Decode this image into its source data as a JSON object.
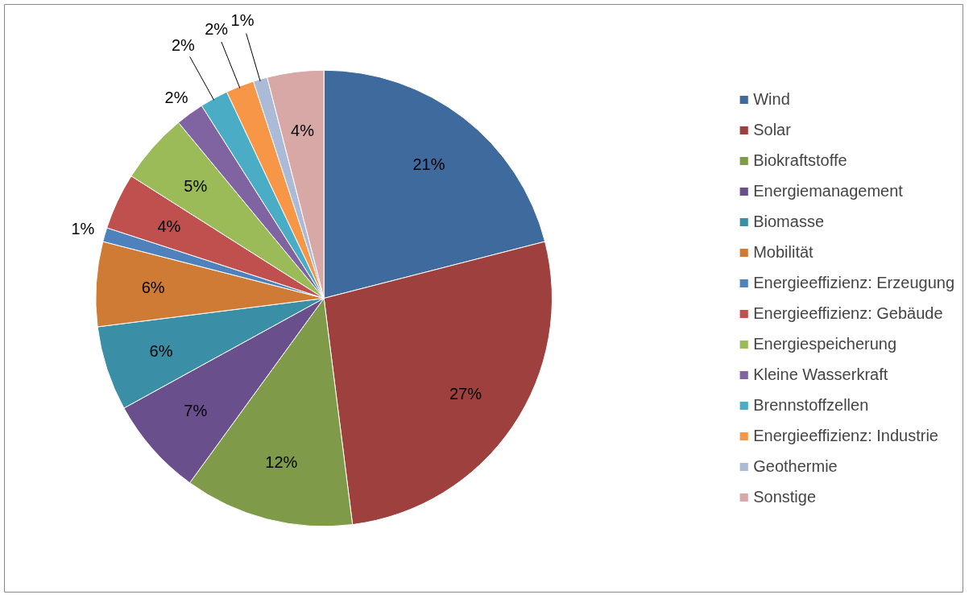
{
  "chart_data": {
    "type": "pie",
    "categories": [
      "Wind",
      "Solar",
      "Biokraftstoffe",
      "Energiemanagement",
      "Biomasse",
      "Mobilität",
      "Energieeffizienz: Erzeugung",
      "Energieeffizienz: Gebäude",
      "Energiespeicherung",
      "Kleine Wasserkraft",
      "Brennstoffzellen",
      "Energieeffizienz: Industrie",
      "Geothermie",
      "Sonstige"
    ],
    "values": [
      21,
      27,
      12,
      7,
      6,
      6,
      1,
      4,
      5,
      2,
      2,
      2,
      1,
      4
    ],
    "colors": [
      "#3f6a9e",
      "#9e413e",
      "#7f9a48",
      "#694f8c",
      "#3a8ea5",
      "#cf7b36",
      "#4f81bd",
      "#c0504d",
      "#9bbb59",
      "#8064a2",
      "#4bacc6",
      "#f79646",
      "#aabad7",
      "#d8a8a7"
    ],
    "value_labels": [
      "21%",
      "27%",
      "12%",
      "7%",
      "6%",
      "6%",
      "1%",
      "4%",
      "5%",
      "2%",
      "2%",
      "2%",
      "1%",
      "4%"
    ],
    "legend": "right"
  }
}
